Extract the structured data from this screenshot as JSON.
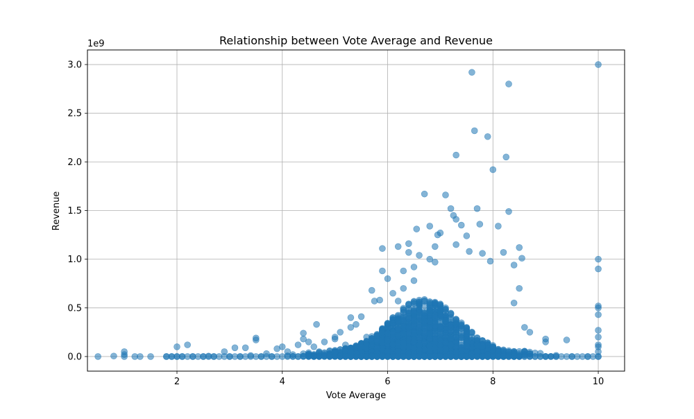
{
  "chart_data": {
    "type": "scatter",
    "title": "Relationship between Vote Average and Revenue",
    "xlabel": "Vote Average",
    "ylabel": "Revenue",
    "y_offset_label": "1e9",
    "xlim": [
      0.3,
      10.5
    ],
    "ylim": [
      -0.15,
      3.15
    ],
    "x_ticks": [
      2,
      4,
      6,
      8,
      10
    ],
    "x_tick_labels": [
      "2",
      "4",
      "6",
      "8",
      "10"
    ],
    "y_ticks": [
      0.0,
      0.5,
      1.0,
      1.5,
      2.0,
      2.5,
      3.0
    ],
    "y_tick_labels": [
      "0.0",
      "0.5",
      "1.0",
      "1.5",
      "2.0",
      "2.5",
      "3.0"
    ],
    "grid": true,
    "marker_color": "#1f77b4",
    "marker_alpha": 0.55,
    "series": [
      {
        "points": [
          [
            0.5,
            0.0
          ],
          [
            0.8,
            0.005
          ],
          [
            1.0,
            0.05
          ],
          [
            1.0,
            0.02
          ],
          [
            1.0,
            0.0
          ],
          [
            1.2,
            0.0
          ],
          [
            1.3,
            0.0
          ],
          [
            1.5,
            0.0
          ],
          [
            1.8,
            0.0
          ],
          [
            1.9,
            0.0
          ],
          [
            2.0,
            0.1
          ],
          [
            2.0,
            0.0
          ],
          [
            2.1,
            0.0
          ],
          [
            2.2,
            0.12
          ],
          [
            2.3,
            0.0
          ],
          [
            2.5,
            0.0
          ],
          [
            2.6,
            0.005
          ],
          [
            2.7,
            0.0
          ],
          [
            2.9,
            0.05
          ],
          [
            3.0,
            0.0
          ],
          [
            3.1,
            0.09
          ],
          [
            3.2,
            0.0
          ],
          [
            3.3,
            0.09
          ],
          [
            3.4,
            0.01
          ],
          [
            3.5,
            0.19
          ],
          [
            3.5,
            0.17
          ],
          [
            3.6,
            0.0
          ],
          [
            3.7,
            0.03
          ],
          [
            3.8,
            0.0
          ],
          [
            3.9,
            0.08
          ],
          [
            4.0,
            0.1
          ],
          [
            4.1,
            0.05
          ],
          [
            4.2,
            0.02
          ],
          [
            4.3,
            0.0
          ],
          [
            4.3,
            0.12
          ],
          [
            4.4,
            0.18
          ],
          [
            4.4,
            0.24
          ],
          [
            4.5,
            0.15
          ],
          [
            4.6,
            0.1
          ],
          [
            4.65,
            0.33
          ],
          [
            4.7,
            0.05
          ],
          [
            4.8,
            0.15
          ],
          [
            4.9,
            0.06
          ],
          [
            5.0,
            0.2
          ],
          [
            5.0,
            0.18
          ],
          [
            5.1,
            0.25
          ],
          [
            5.2,
            0.12
          ],
          [
            5.3,
            0.3
          ],
          [
            5.3,
            0.4
          ],
          [
            5.4,
            0.33
          ],
          [
            5.5,
            0.41
          ],
          [
            5.6,
            0.2
          ],
          [
            5.7,
            0.68
          ],
          [
            5.75,
            0.57
          ],
          [
            5.85,
            0.58
          ],
          [
            5.9,
            0.88
          ],
          [
            5.9,
            1.11
          ],
          [
            6.0,
            0.8
          ],
          [
            6.1,
            0.65
          ],
          [
            6.2,
            0.57
          ],
          [
            6.2,
            1.13
          ],
          [
            6.3,
            0.88
          ],
          [
            6.3,
            0.7
          ],
          [
            6.4,
            1.16
          ],
          [
            6.4,
            1.07
          ],
          [
            6.5,
            0.92
          ],
          [
            6.5,
            0.78
          ],
          [
            6.55,
            1.31
          ],
          [
            6.6,
            1.04
          ],
          [
            6.7,
            1.67
          ],
          [
            6.8,
            1.0
          ],
          [
            6.8,
            1.34
          ],
          [
            6.9,
            1.13
          ],
          [
            6.9,
            0.97
          ],
          [
            6.95,
            1.25
          ],
          [
            7.0,
            1.27
          ],
          [
            7.1,
            1.66
          ],
          [
            7.2,
            1.52
          ],
          [
            7.25,
            1.45
          ],
          [
            7.3,
            2.07
          ],
          [
            7.3,
            1.41
          ],
          [
            7.3,
            1.15
          ],
          [
            7.4,
            1.35
          ],
          [
            7.5,
            1.24
          ],
          [
            7.55,
            1.08
          ],
          [
            7.6,
            2.92
          ],
          [
            7.65,
            2.32
          ],
          [
            7.7,
            1.52
          ],
          [
            7.75,
            1.36
          ],
          [
            7.8,
            1.06
          ],
          [
            7.9,
            2.26
          ],
          [
            7.95,
            0.98
          ],
          [
            8.0,
            1.92
          ],
          [
            8.1,
            1.34
          ],
          [
            8.2,
            1.07
          ],
          [
            8.25,
            2.05
          ],
          [
            8.3,
            2.8
          ],
          [
            8.3,
            1.49
          ],
          [
            8.4,
            0.94
          ],
          [
            8.5,
            1.12
          ],
          [
            8.55,
            1.01
          ],
          [
            8.4,
            0.55
          ],
          [
            8.5,
            0.7
          ],
          [
            8.6,
            0.3
          ],
          [
            8.7,
            0.25
          ],
          [
            8.8,
            0.0
          ],
          [
            9.0,
            0.18
          ],
          [
            9.0,
            0.15
          ],
          [
            9.2,
            0.0
          ],
          [
            9.4,
            0.17
          ],
          [
            9.5,
            0.0
          ],
          [
            9.8,
            0.0
          ],
          [
            10.0,
            3.0
          ],
          [
            10.0,
            1.0
          ],
          [
            10.0,
            0.9
          ],
          [
            10.0,
            0.52
          ],
          [
            10.0,
            0.5
          ],
          [
            10.0,
            0.43
          ],
          [
            10.0,
            0.27
          ],
          [
            10.0,
            0.2
          ],
          [
            10.0,
            0.12
          ],
          [
            10.0,
            0.1
          ],
          [
            10.0,
            0.05
          ],
          [
            10.0,
            0.0
          ]
        ]
      }
    ]
  }
}
